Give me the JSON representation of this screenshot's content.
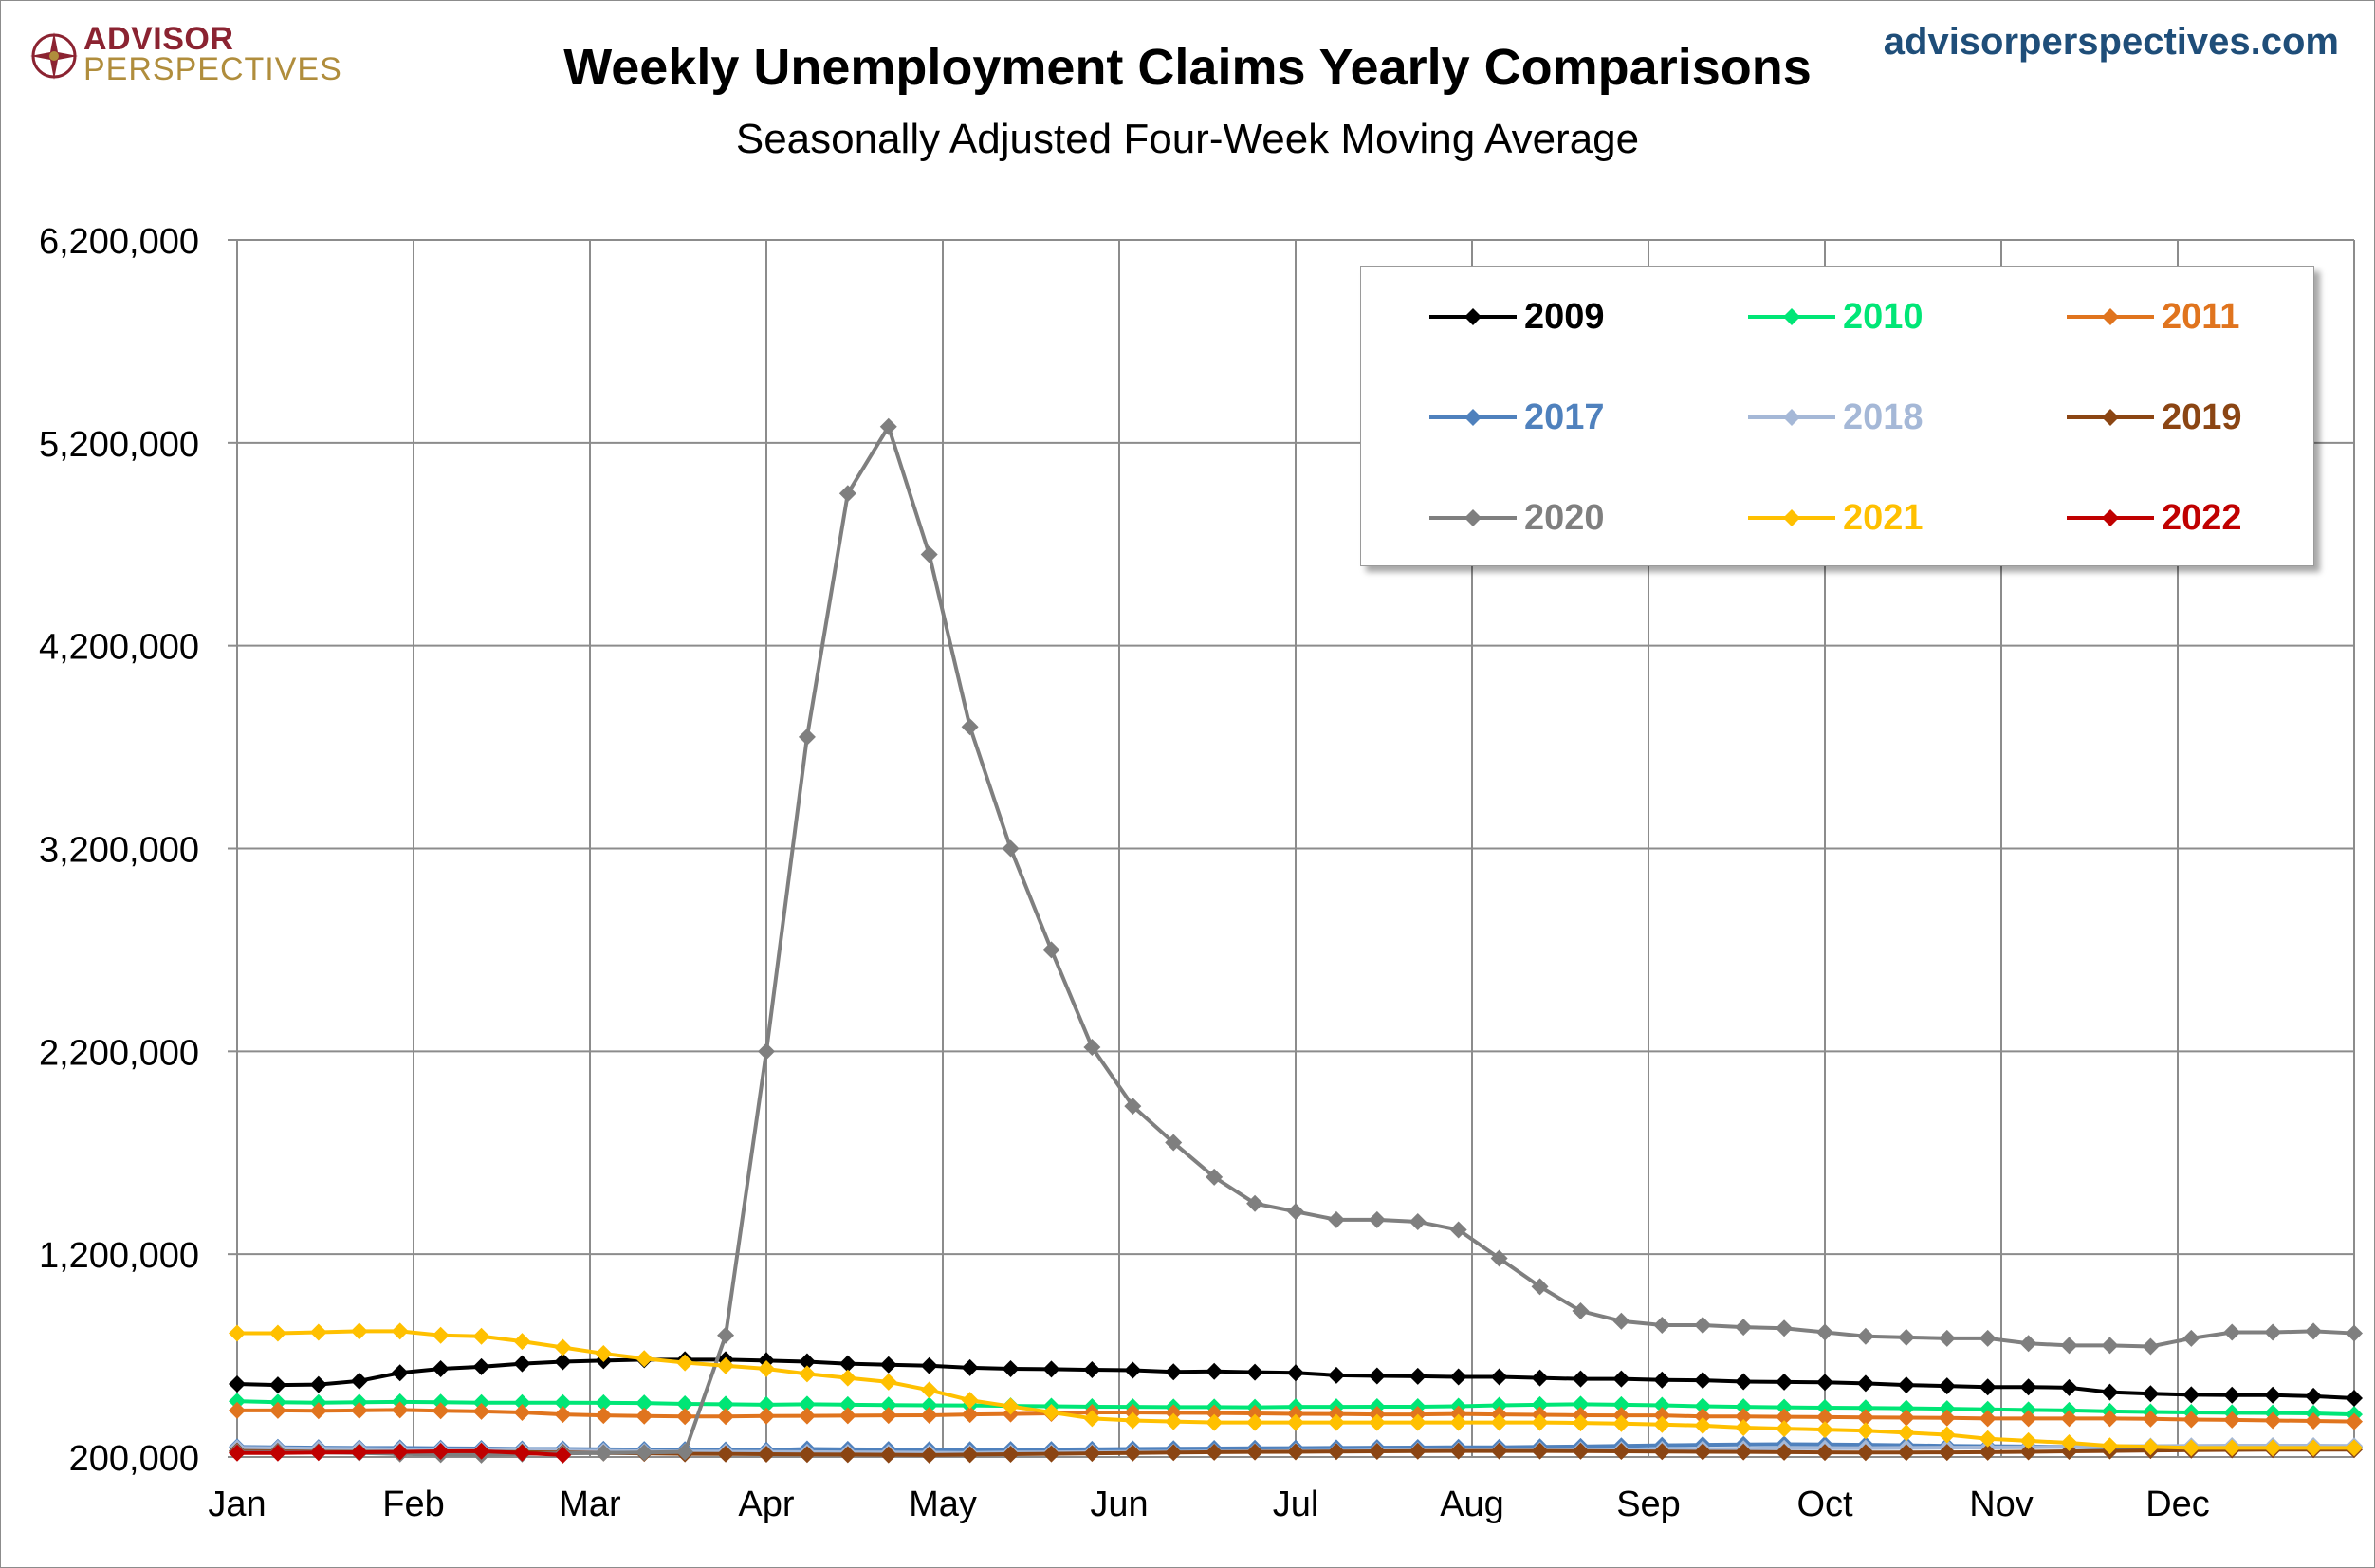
{
  "header": {
    "logo_line1": "ADVISOR",
    "logo_line2": "PERSPECTIVES",
    "site": "advisorperspectives.com"
  },
  "chart_data": {
    "type": "line",
    "title": "Weekly Unemployment Claims Yearly Comparisons",
    "subtitle": "Seasonally Adjusted Four-Week Moving Average",
    "x_ticks": [
      "Jan",
      "Feb",
      "Mar",
      "Apr",
      "May",
      "Jun",
      "Jul",
      "Aug",
      "Sep",
      "Oct",
      "Nov",
      "Dec"
    ],
    "y_ticks": [
      "200,000",
      "1,200,000",
      "2,200,000",
      "3,200,000",
      "4,200,000",
      "5,200,000",
      "6,200,000"
    ],
    "ylim": [
      200000,
      6200000
    ],
    "xlim_weeks": [
      0,
      52
    ],
    "grid": true,
    "legend_position": "top-right",
    "series": [
      {
        "name": "2009",
        "color": "#000000",
        "values": [
          560000,
          555000,
          557000,
          575000,
          615000,
          635000,
          645000,
          660000,
          670000,
          675000,
          680000,
          680000,
          680000,
          675000,
          670000,
          660000,
          655000,
          650000,
          640000,
          635000,
          633000,
          630000,
          628000,
          620000,
          622000,
          618000,
          615000,
          603000,
          600000,
          598000,
          595000,
          595000,
          590000,
          585000,
          585000,
          580000,
          578000,
          572000,
          570000,
          568000,
          563000,
          555000,
          550000,
          545000,
          545000,
          542000,
          520000,
          512000,
          507000,
          505000,
          505000,
          500000,
          490000
        ]
      },
      {
        "name": "2010",
        "color": "#00e676",
        "values": [
          475000,
          470000,
          468000,
          470000,
          472000,
          470000,
          468000,
          468000,
          468000,
          467000,
          466000,
          462000,
          460000,
          458000,
          460000,
          458000,
          456000,
          455000,
          454000,
          452000,
          450000,
          448000,
          447000,
          446000,
          446000,
          445000,
          447000,
          447000,
          448000,
          448000,
          450000,
          455000,
          458000,
          460000,
          458000,
          455000,
          450000,
          447000,
          445000,
          443000,
          442000,
          440000,
          438000,
          435000,
          432000,
          430000,
          425000,
          422000,
          420000,
          418000,
          417000,
          415000,
          410000
        ]
      },
      {
        "name": "2011",
        "color": "#e0741e",
        "values": [
          430000,
          430000,
          428000,
          430000,
          432000,
          428000,
          425000,
          420000,
          410000,
          405000,
          402000,
          400000,
          400000,
          402000,
          403000,
          404000,
          405000,
          406000,
          410000,
          412000,
          415000,
          420000,
          420000,
          418000,
          417000,
          415000,
          413000,
          412000,
          410000,
          410000,
          412000,
          410000,
          408000,
          406000,
          405000,
          405000,
          400000,
          400000,
          398000,
          397000,
          395000,
          394000,
          393000,
          390000,
          390000,
          390000,
          390000,
          388000,
          385000,
          383000,
          380000,
          378000,
          375000
        ]
      },
      {
        "name": "2017",
        "color": "#4f81bd",
        "values": [
          250000,
          248000,
          246000,
          245000,
          245000,
          243000,
          242000,
          240000,
          240000,
          238000,
          237000,
          236000,
          235000,
          234000,
          240000,
          238000,
          237000,
          236000,
          236000,
          237000,
          237000,
          238000,
          240000,
          241000,
          242000,
          243000,
          244000,
          245000,
          246000,
          247000,
          248000,
          248000,
          250000,
          252000,
          255000,
          258000,
          260000,
          262000,
          263000,
          262000,
          260000,
          258000,
          255000,
          253000,
          252000,
          250000,
          248000,
          246000,
          245000,
          244000,
          243000,
          242000,
          250000
        ]
      },
      {
        "name": "2018",
        "color": "#a5b8d7",
        "values": [
          245000,
          243000,
          241000,
          240000,
          238000,
          237000,
          235000,
          233000,
          232000,
          230000,
          228000,
          227000,
          226000,
          225000,
          224000,
          223000,
          222000,
          221000,
          220000,
          222000,
          223000,
          224000,
          225000,
          226000,
          227000,
          228000,
          229000,
          230000,
          232000,
          233000,
          234000,
          234000,
          235000,
          236000,
          237000,
          238000,
          240000,
          241000,
          243000,
          243000,
          244000,
          245000,
          246000,
          247000,
          248000,
          250000,
          253000,
          254000,
          255000,
          256000,
          256000,
          256000,
          255000
        ]
      },
      {
        "name": "2019",
        "color": "#8b4513",
        "values": [
          230000,
          228000,
          226000,
          225000,
          226000,
          227000,
          226000,
          224000,
          222000,
          220000,
          218000,
          216000,
          215000,
          214000,
          213000,
          212000,
          211000,
          210000,
          212000,
          214000,
          216000,
          218000,
          220000,
          222000,
          224000,
          225000,
          226000,
          227000,
          228000,
          229000,
          230000,
          230000,
          230000,
          229000,
          228000,
          227000,
          226000,
          225000,
          224000,
          223000,
          222000,
          222000,
          223000,
          224000,
          226000,
          228000,
          230000,
          232000,
          234000,
          235000,
          236000,
          236000,
          236000
        ]
      },
      {
        "name": "2020",
        "color": "#7f7f7f",
        "values": [
          225000,
          224000,
          223000,
          220000,
          215000,
          212000,
          210000,
          215000,
          218000,
          220000,
          222000,
          225000,
          800000,
          2200000,
          3750000,
          4950000,
          5280000,
          4650000,
          3800000,
          3200000,
          2700000,
          2220000,
          1930000,
          1750000,
          1580000,
          1450000,
          1410000,
          1370000,
          1370000,
          1360000,
          1320000,
          1180000,
          1040000,
          920000,
          870000,
          850000,
          850000,
          840000,
          835000,
          815000,
          795000,
          790000,
          785000,
          785000,
          760000,
          750000,
          750000,
          745000,
          785000,
          815000,
          815000,
          820000,
          810000
        ]
      },
      {
        "name": "2021",
        "color": "#ffc000",
        "values": [
          810000,
          810000,
          815000,
          820000,
          820000,
          800000,
          795000,
          770000,
          740000,
          710000,
          685000,
          665000,
          650000,
          635000,
          610000,
          590000,
          570000,
          530000,
          480000,
          450000,
          420000,
          390000,
          380000,
          375000,
          370000,
          370000,
          370000,
          370000,
          370000,
          370000,
          370000,
          370000,
          370000,
          368000,
          365000,
          360000,
          355000,
          345000,
          340000,
          335000,
          330000,
          320000,
          310000,
          290000,
          280000,
          270000,
          255000,
          250000,
          245000,
          245000,
          245000,
          245000,
          245000
        ]
      },
      {
        "name": "2022",
        "color": "#c00000",
        "values": [
          220000,
          220000,
          222000,
          223000,
          225000,
          228000,
          229000,
          220000,
          210000
        ]
      }
    ]
  }
}
